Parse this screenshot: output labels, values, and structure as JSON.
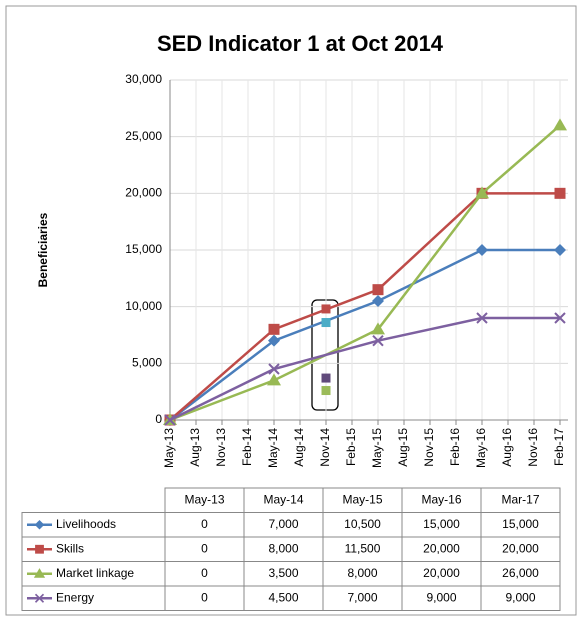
{
  "chart_data": {
    "type": "line",
    "title": "SED Indicator 1 at Oct 2014",
    "y_label": "Beneficiaries",
    "categories": [
      "May-13",
      "Aug-13",
      "Nov-13",
      "Feb-14",
      "May-14",
      "Aug-14",
      "Nov-14",
      "Feb-15",
      "May-15",
      "Aug-15",
      "Nov-15",
      "Feb-16",
      "May-16",
      "Aug-16",
      "Nov-16",
      "Feb-17"
    ],
    "ylim": [
      0,
      30000
    ],
    "yticks": [
      {
        "value": 0,
        "label": "0"
      },
      {
        "value": 5000,
        "label": "5,000"
      },
      {
        "value": 10000,
        "label": "10,000"
      },
      {
        "value": 15000,
        "label": "15,000"
      },
      {
        "value": 20000,
        "label": "20,000"
      },
      {
        "value": 25000,
        "label": "25,000"
      },
      {
        "value": 30000,
        "label": "30,000"
      }
    ],
    "grid": true,
    "series": [
      {
        "name": "Livelihoods",
        "color": "#4a7ebb",
        "marker": "diamond",
        "values": [
          0,
          null,
          null,
          null,
          7000,
          null,
          null,
          null,
          10500,
          null,
          null,
          null,
          15000,
          null,
          null,
          15000
        ],
        "actual_values": [
          null,
          null,
          null,
          null,
          null,
          null,
          8600,
          null,
          null,
          null,
          null,
          null,
          null,
          null,
          null,
          null
        ],
        "actual_color": "#4bacc6"
      },
      {
        "name": "Skills",
        "color": "#be4b48",
        "marker": "square",
        "values": [
          0,
          null,
          null,
          null,
          8000,
          null,
          null,
          null,
          11500,
          null,
          null,
          null,
          20000,
          null,
          null,
          20000
        ],
        "actual_values": [
          null,
          null,
          null,
          null,
          null,
          null,
          9800,
          null,
          null,
          null,
          null,
          null,
          null,
          null,
          null,
          null
        ],
        "actual_color": "#be4b48"
      },
      {
        "name": "Market linkage",
        "color": "#98b954",
        "marker": "triangle",
        "values": [
          0,
          null,
          null,
          null,
          3500,
          null,
          null,
          null,
          8000,
          null,
          null,
          null,
          20000,
          null,
          null,
          26000
        ],
        "actual_values": [
          null,
          null,
          null,
          null,
          null,
          null,
          2600,
          null,
          null,
          null,
          null,
          null,
          null,
          null,
          null,
          null
        ],
        "actual_color": "#9bbb59"
      },
      {
        "name": "Energy",
        "color": "#7d60a0",
        "marker": "x",
        "values": [
          0,
          null,
          null,
          null,
          4500,
          null,
          null,
          null,
          7000,
          null,
          null,
          null,
          9000,
          null,
          null,
          9000
        ],
        "actual_values": [
          null,
          null,
          null,
          null,
          null,
          null,
          3700,
          null,
          null,
          null,
          null,
          null,
          null,
          null,
          null,
          null
        ],
        "actual_color": "#604a7b"
      }
    ]
  },
  "table": {
    "header": [
      "May-13",
      "May-14",
      "May-15",
      "May-16",
      "Mar-17"
    ],
    "rows": [
      [
        "0",
        "7,000",
        "10,500",
        "15,000",
        "15,000"
      ],
      [
        "0",
        "8,000",
        "11,500",
        "20,000",
        "20,000"
      ],
      [
        "0",
        "3,500",
        "8,000",
        "20,000",
        "26,000"
      ],
      [
        "0",
        "4,500",
        "7,000",
        "9,000",
        "9,000"
      ]
    ]
  }
}
